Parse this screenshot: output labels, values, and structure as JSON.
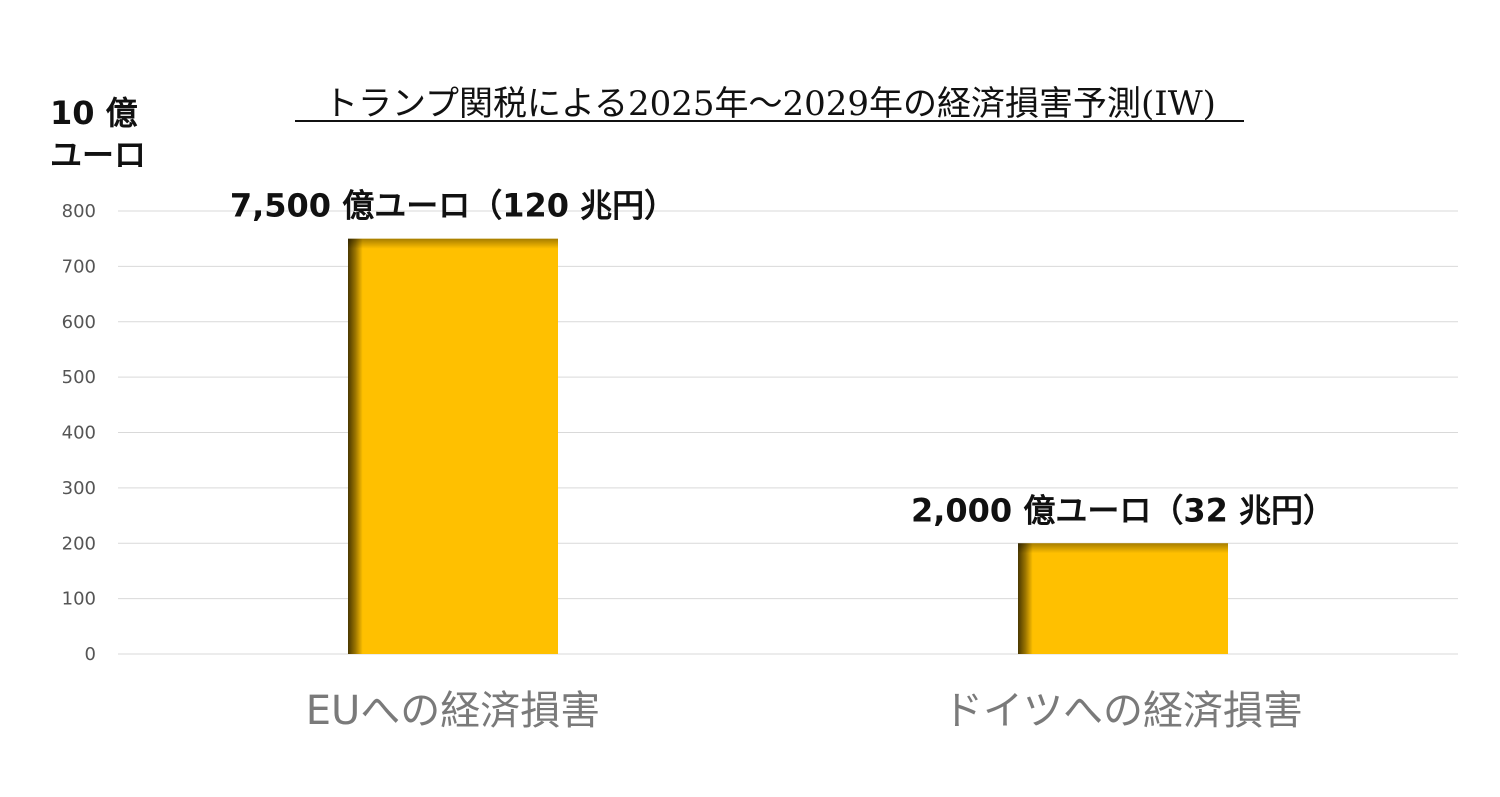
{
  "chart_data": {
    "type": "bar",
    "title": "トランプ関税による2025年～2029年の経済損害予測(IW)",
    "ylabel_line1": "10 億",
    "ylabel_line2": "ユーロ",
    "categories": [
      "EUへの経済損害",
      "ドイツへの経済損害"
    ],
    "values": [
      750,
      200
    ],
    "data_labels": [
      "7,500 億ユーロ（120 兆円）",
      "2,000 億ユーロ（32 兆円）"
    ],
    "ylim": [
      0,
      800
    ],
    "yticks": [
      "0",
      "100",
      "200",
      "300",
      "400",
      "500",
      "600",
      "700",
      "800"
    ],
    "grid": true,
    "legend": "none",
    "colors": {
      "bar": "#FFC000",
      "bar_shadow": "#5a4300"
    }
  }
}
